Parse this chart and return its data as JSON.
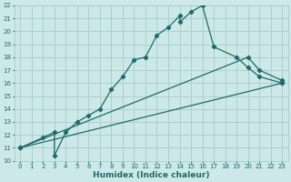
{
  "background_color": "#cce8e8",
  "grid_color": "#aacccc",
  "line_color": "#1e6b6b",
  "line_width": 0.9,
  "marker": "D",
  "marker_size": 2.2,
  "curve1_x": [
    0,
    2,
    3,
    3,
    4,
    5,
    6,
    7,
    8,
    9,
    10,
    11,
    12,
    13,
    14,
    14,
    15,
    16,
    17,
    19,
    20,
    21,
    23
  ],
  "curve1_y": [
    11,
    11.8,
    12.2,
    10.4,
    12.2,
    13.0,
    13.5,
    14.0,
    15.5,
    16.5,
    17.8,
    18.0,
    19.7,
    20.3,
    21.2,
    20.7,
    21.5,
    22.0,
    18.8,
    18.0,
    17.2,
    16.5,
    16.0
  ],
  "curve2_x": [
    0,
    20,
    21,
    23
  ],
  "curve2_y": [
    11,
    18.0,
    17.0,
    16.2
  ],
  "curve3_x": [
    0,
    23
  ],
  "curve3_y": [
    11,
    16.0
  ],
  "xlim": [
    -0.5,
    23.5
  ],
  "ylim": [
    10,
    22
  ],
  "xticks": [
    0,
    1,
    2,
    3,
    4,
    5,
    6,
    7,
    8,
    9,
    10,
    11,
    12,
    13,
    14,
    15,
    16,
    17,
    18,
    19,
    20,
    21,
    22,
    23
  ],
  "yticks": [
    10,
    11,
    12,
    13,
    14,
    15,
    16,
    17,
    18,
    19,
    20,
    21,
    22
  ],
  "xlabel": "Humidex (Indice chaleur)",
  "xlabel_fontsize": 6.5,
  "tick_fontsize": 5.0
}
